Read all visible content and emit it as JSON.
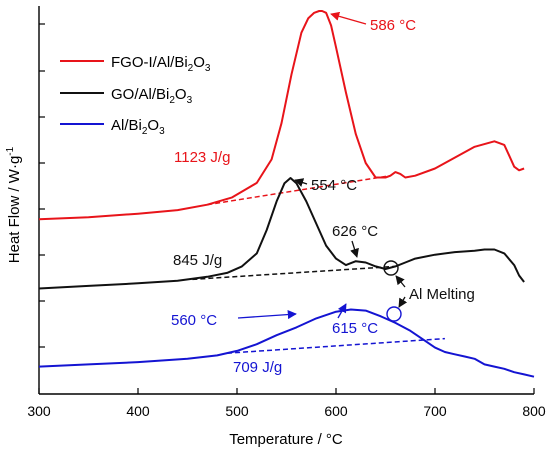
{
  "chart_data": {
    "type": "line",
    "xlabel": "Temperature / °C",
    "ylabel": "Heat Flow / W·g",
    "ylabel_superscript": "-1",
    "xlim": [
      300,
      800
    ],
    "xticks": [
      "300",
      "400",
      "500",
      "600",
      "700",
      "800"
    ],
    "legend_position": "top-left",
    "series": [
      {
        "name": "FGO-I/Al/Bi2O3",
        "legend_text": "FGO-I/Al/Bi",
        "legend_sub": "2",
        "legend_tail": "O",
        "legend_sub2": "3",
        "color": "#e8141a",
        "x": [
          300,
          350,
          400,
          440,
          470,
          495,
          520,
          535,
          545,
          555,
          565,
          572,
          578,
          583,
          586,
          590,
          595,
          600,
          610,
          620,
          630,
          640,
          650,
          655,
          660,
          665,
          670,
          680,
          700,
          720,
          740,
          760,
          770,
          775,
          780,
          785,
          790
        ],
        "y": [
          -0.15,
          -0.14,
          -0.12,
          -0.1,
          -0.07,
          -0.03,
          0.05,
          0.18,
          0.38,
          0.65,
          0.88,
          0.96,
          0.99,
          1.0,
          1.0,
          0.99,
          0.92,
          0.8,
          0.55,
          0.32,
          0.16,
          0.08,
          0.08,
          0.09,
          0.11,
          0.1,
          0.08,
          0.09,
          0.13,
          0.19,
          0.25,
          0.28,
          0.26,
          0.2,
          0.14,
          0.12,
          0.13
        ]
      },
      {
        "name": "GO/Al/Bi2O3",
        "legend_text": "GO/Al/Bi",
        "legend_sub": "2",
        "legend_tail": "O",
        "legend_sub2": "3",
        "color": "#111111",
        "x": [
          300,
          350,
          400,
          440,
          470,
          490,
          505,
          520,
          530,
          540,
          548,
          554,
          560,
          570,
          580,
          590,
          600,
          610,
          620,
          630,
          640,
          650,
          660,
          670,
          680,
          700,
          720,
          740,
          750,
          760,
          770,
          780,
          785,
          790
        ],
        "y": [
          -0.15,
          -0.13,
          -0.11,
          -0.09,
          -0.06,
          -0.03,
          0.02,
          0.12,
          0.3,
          0.52,
          0.66,
          0.7,
          0.66,
          0.52,
          0.35,
          0.18,
          0.08,
          0.03,
          0.06,
          0.05,
          0.02,
          0.0,
          0.02,
          0.05,
          0.08,
          0.11,
          0.13,
          0.14,
          0.15,
          0.15,
          0.12,
          0.03,
          -0.05,
          -0.1
        ]
      },
      {
        "name": "Al/Bi2O3",
        "legend_text": "Al/Bi",
        "legend_sub": "2",
        "legend_tail": "O",
        "legend_sub2": "3",
        "color": "#1414d2",
        "x": [
          300,
          350,
          400,
          450,
          480,
          500,
          520,
          540,
          560,
          580,
          600,
          615,
          630,
          645,
          660,
          675,
          690,
          700,
          710,
          720,
          730,
          740,
          750,
          760,
          770,
          780,
          790,
          800
        ],
        "y": [
          -0.05,
          -0.03,
          -0.01,
          0.02,
          0.05,
          0.09,
          0.15,
          0.23,
          0.3,
          0.38,
          0.44,
          0.46,
          0.45,
          0.4,
          0.34,
          0.27,
          0.18,
          0.12,
          0.08,
          0.06,
          0.04,
          0.02,
          -0.03,
          -0.05,
          -0.07,
          -0.1,
          -0.12,
          -0.14
        ]
      }
    ],
    "baselines": [
      {
        "series": "FGO-I/Al/Bi2O3",
        "x": [
          470,
          655
        ],
        "y": [
          -0.07,
          0.09
        ]
      },
      {
        "series": "GO/Al/Bi2O3",
        "x": [
          455,
          660
        ],
        "y": [
          -0.08,
          0.02
        ]
      },
      {
        "series": "Al/Bi2O3",
        "x": [
          490,
          710
        ],
        "y": [
          0.07,
          0.2
        ]
      }
    ],
    "annotations": [
      {
        "text": "586 °C",
        "color": "#e8141a"
      },
      {
        "text": "1123 J/g",
        "color": "#e8141a"
      },
      {
        "text": "554 °C",
        "color": "#111111"
      },
      {
        "text": "626 °C",
        "color": "#111111"
      },
      {
        "text": "845 J/g",
        "color": "#111111"
      },
      {
        "text": "Al Melting",
        "color": "#111111"
      },
      {
        "text": "560 °C",
        "color": "#1414d2"
      },
      {
        "text": "615 °C",
        "color": "#1414d2"
      },
      {
        "text": "709 J/g",
        "color": "#1414d2"
      }
    ]
  }
}
